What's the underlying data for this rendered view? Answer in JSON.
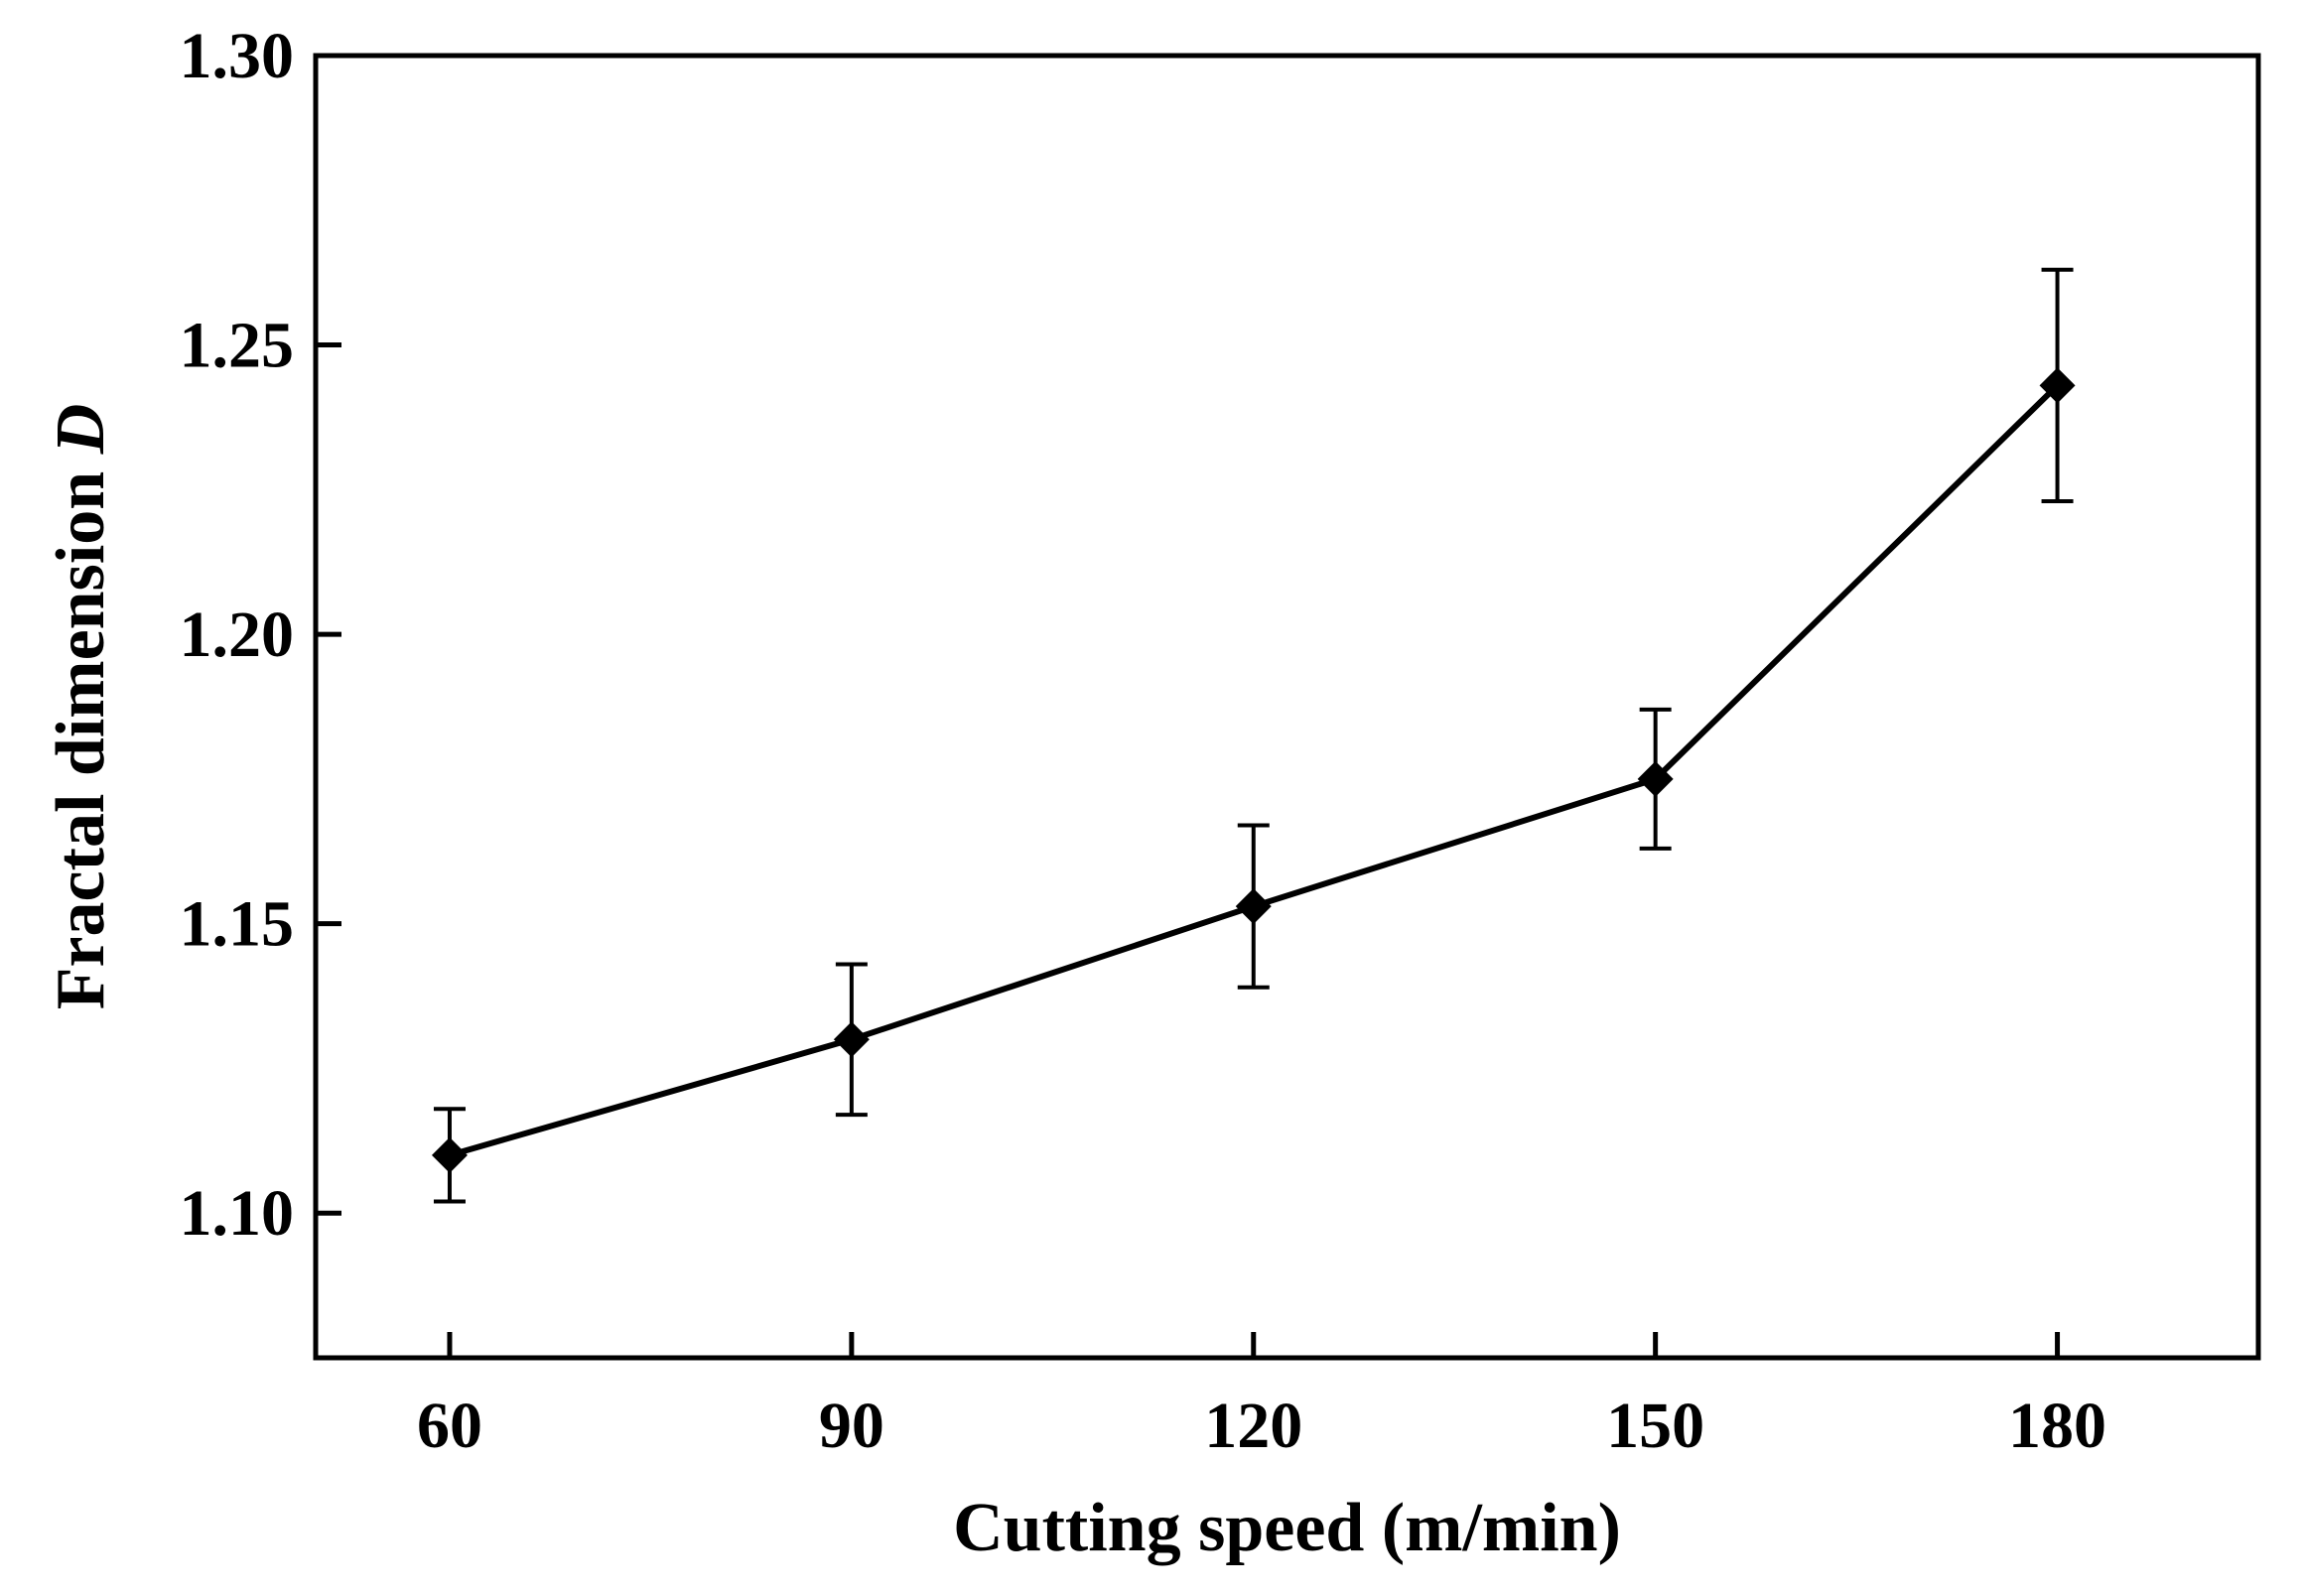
{
  "chart_data": {
    "type": "line",
    "title": "",
    "xlabel": "Cutting speed (m/min)",
    "ylabel_text": "Fractal dimension ",
    "ylabel_var": "D",
    "x": [
      60,
      90,
      120,
      150,
      180
    ],
    "xticks": [
      "60",
      "90",
      "120",
      "150",
      "180"
    ],
    "xlim": [
      50,
      195
    ],
    "ylim": [
      1.075,
      1.3
    ],
    "yticks": [
      "1.10",
      "1.15",
      "1.20",
      "1.25",
      "1.30"
    ],
    "ytick_values": [
      1.1,
      1.15,
      1.2,
      1.25,
      1.3
    ],
    "series": [
      {
        "values": [
          1.11,
          1.13,
          1.153,
          1.175,
          1.243
        ],
        "error": [
          0.008,
          0.013,
          0.014,
          0.012,
          0.02
        ],
        "marker": "diamond",
        "color": "#000000"
      }
    ],
    "grid": false,
    "legend": "none"
  }
}
